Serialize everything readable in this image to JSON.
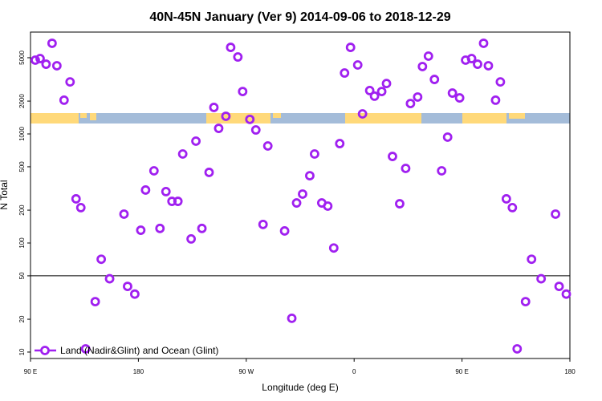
{
  "chart_data": {
    "type": "scatter",
    "title": "40N-45N January (Ver 9)   2014-09-06 to 2018-12-29",
    "x_label": "Longitude (deg E)",
    "y_label": "N Total",
    "log_y": true,
    "hline": 50,
    "legend": "bottom-left",
    "xlim": [
      -270,
      180
    ],
    "xticks": [
      {
        "value": -270,
        "label": "90 E"
      },
      {
        "value": -180,
        "label": "180"
      },
      {
        "value": -90,
        "label": "90 W"
      },
      0,
      {
        "value": 90,
        "label": "90 E"
      },
      {
        "value": 180,
        "label": "180"
      }
    ],
    "ylim": [
      8.73,
      8590
    ],
    "yticks": [
      10,
      20,
      50,
      100,
      200,
      500,
      1000,
      2000,
      5000
    ],
    "x": [
      -266,
      -262,
      -257,
      -252,
      -248,
      -242,
      -237,
      -232,
      -228,
      -224,
      -216,
      -211,
      -204,
      -192,
      -189,
      -183,
      -178,
      -174,
      -167,
      -162,
      -157,
      -152,
      -147,
      -143,
      -136,
      -132,
      -127,
      -121,
      -117,
      -113,
      -107,
      -103,
      -97,
      -93,
      -87,
      -82,
      -76,
      -72,
      -58,
      -52,
      -48,
      -43,
      -37,
      -33,
      -27,
      -22,
      -17,
      -12,
      -8,
      -3,
      3,
      7,
      13,
      17,
      23,
      27,
      32,
      38,
      43,
      47,
      53,
      57,
      62,
      67,
      73,
      78,
      82,
      88,
      93,
      98,
      103,
      108,
      112,
      118,
      122,
      127,
      132,
      136,
      143,
      148,
      156,
      168,
      171,
      177
    ],
    "series": [
      {
        "name": "Land (Nadir&Glint) and Ocean (Glint)",
        "color": "#a020f0",
        "values": [
          4750,
          4910,
          4360,
          6780,
          4220,
          2040,
          3000,
          254,
          211,
          10.7,
          29,
          71,
          47,
          184,
          40,
          34,
          131,
          306,
          459,
          136,
          296,
          241,
          241,
          655,
          109,
          859,
          136,
          444,
          1750,
          1125,
          1452,
          6220,
          5080,
          2450,
          1360,
          1088,
          148,
          776,
          129,
          20.4,
          233,
          281,
          414,
          655,
          233,
          218,
          90,
          816,
          3620,
          6220,
          4290,
          1527,
          2500,
          2220,
          2450,
          2900,
          622,
          229,
          483,
          1900,
          2180,
          4150,
          5170,
          3160,
          459,
          935,
          2370,
          2140,
          4750,
          4910,
          4360,
          6780,
          4220,
          2040,
          3000,
          254,
          211,
          10.7,
          29,
          71,
          47,
          184,
          40,
          34
        ]
      }
    ]
  }
}
